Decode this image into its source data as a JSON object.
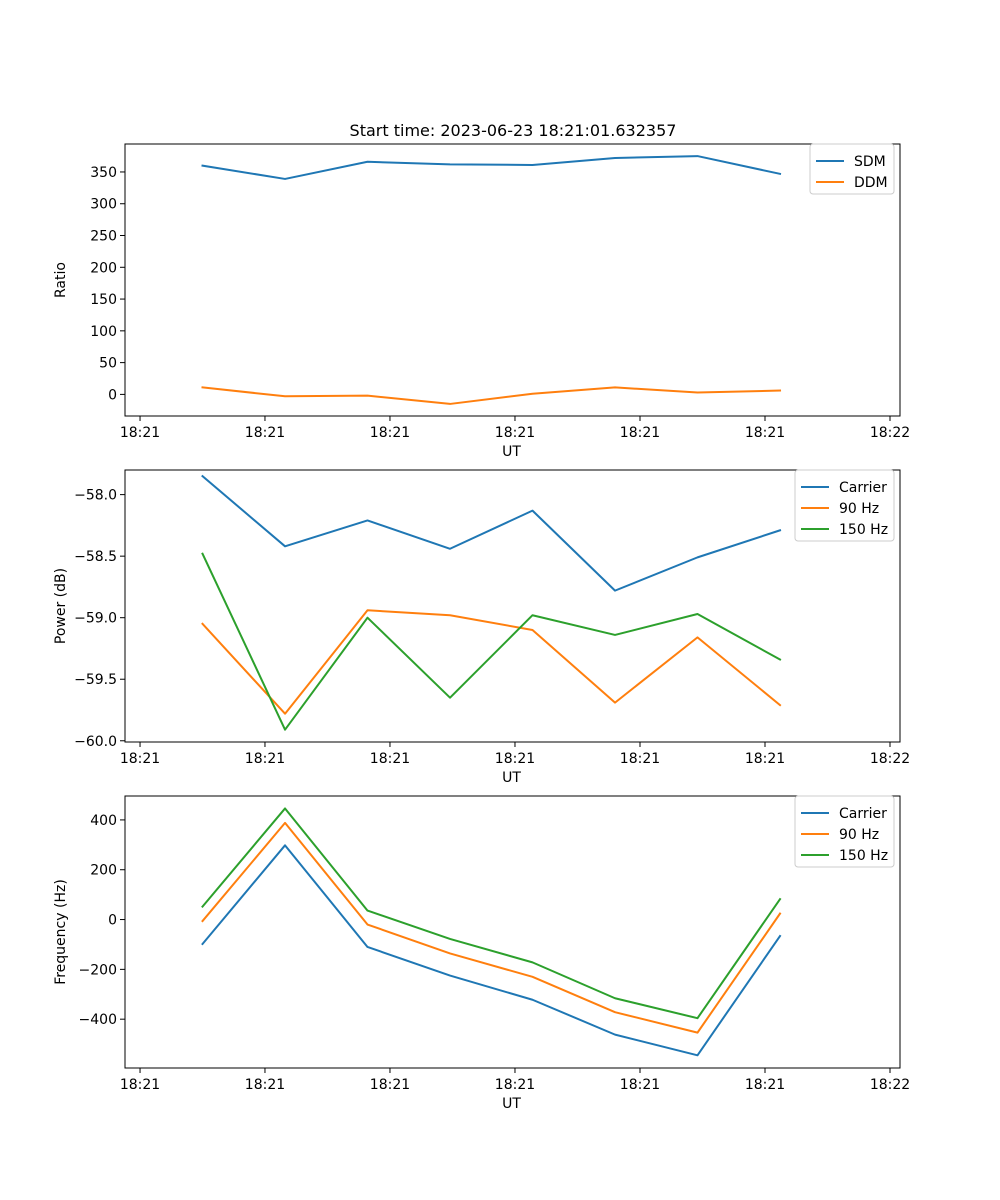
{
  "figure_title": "Start time: 2023-06-23 18:21:01.632357",
  "chart_data": [
    {
      "type": "line",
      "title": "Start time: 2023-06-23 18:21:01.632357",
      "xlabel": "UT",
      "ylabel": "Ratio",
      "x_tick_labels": [
        "18:21",
        "18:21",
        "18:21",
        "18:21",
        "18:21",
        "18:21",
        "18:22"
      ],
      "y_ticks": [
        0,
        50,
        100,
        150,
        200,
        250,
        300,
        350
      ],
      "ylim": [
        -34,
        394
      ],
      "legend_position": "upper-right",
      "series": [
        {
          "name": "SDM",
          "color": "#1f77b4",
          "values": [
            360,
            339,
            366,
            362,
            361,
            372,
            375,
            347
          ]
        },
        {
          "name": "DDM",
          "color": "#ff7f0e",
          "values": [
            11,
            -3,
            -2,
            -15,
            1,
            11,
            3,
            6
          ]
        }
      ]
    },
    {
      "type": "line",
      "xlabel": "UT",
      "ylabel": "Power (dB)",
      "x_tick_labels": [
        "18:21",
        "18:21",
        "18:21",
        "18:21",
        "18:21",
        "18:21",
        "18:22"
      ],
      "y_ticks": [
        -60.0,
        -59.5,
        -59.0,
        -58.5,
        -58.0
      ],
      "y_tick_labels": [
        "−60.0",
        "−59.5",
        "−59.0",
        "−58.5",
        "−58.0"
      ],
      "ylim": [
        -60.01,
        -57.8
      ],
      "legend_position": "upper-right",
      "series": [
        {
          "name": "Carrier",
          "color": "#1f77b4",
          "values": [
            -57.85,
            -58.42,
            -58.21,
            -58.44,
            -58.13,
            -58.78,
            -58.51,
            -58.29
          ]
        },
        {
          "name": "90 Hz",
          "color": "#ff7f0e",
          "values": [
            -59.05,
            -59.78,
            -58.94,
            -58.98,
            -59.1,
            -59.69,
            -59.16,
            -59.71
          ]
        },
        {
          "name": "150 Hz",
          "color": "#2ca02c",
          "values": [
            -58.48,
            -59.91,
            -59.0,
            -59.65,
            -58.98,
            -59.14,
            -58.97,
            -59.34
          ]
        }
      ]
    },
    {
      "type": "line",
      "xlabel": "UT",
      "ylabel": "Frequency (Hz)",
      "x_tick_labels": [
        "18:21",
        "18:21",
        "18:21",
        "18:21",
        "18:21",
        "18:21",
        "18:22"
      ],
      "y_ticks": [
        -400,
        -200,
        0,
        200,
        400
      ],
      "y_tick_labels": [
        "−400",
        "−200",
        "0",
        "200",
        "400"
      ],
      "ylim": [
        -596,
        496
      ],
      "legend_position": "upper-right",
      "series": [
        {
          "name": "Carrier",
          "color": "#1f77b4",
          "values": [
            -98,
            298,
            -110,
            -225,
            -322,
            -462,
            -545,
            -66
          ]
        },
        {
          "name": "90 Hz",
          "color": "#ff7f0e",
          "values": [
            -6,
            388,
            -20,
            -136,
            -230,
            -372,
            -454,
            24
          ]
        },
        {
          "name": "150 Hz",
          "color": "#2ca02c",
          "values": [
            52,
            446,
            36,
            -78,
            -172,
            -316,
            -396,
            82
          ]
        }
      ]
    }
  ]
}
